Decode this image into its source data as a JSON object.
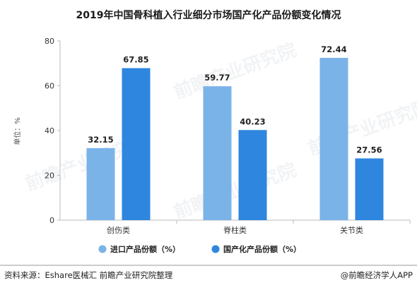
{
  "footer": {
    "source": "资料来源：Eshare医械汇 前瞻产业研究院整理",
    "brand": "@前瞻经济学人APP"
  },
  "watermark": "前瞻产业研究院",
  "chart_data": {
    "type": "bar",
    "title": "2019年中国骨科植入行业细分市场国产化产品份额变化情况",
    "ylabel": "单位：%",
    "xlabel": "",
    "ylim": [
      0,
      80
    ],
    "yticks": [
      0,
      20,
      40,
      60,
      80
    ],
    "categories": [
      "创伤类",
      "脊柱类",
      "关节类"
    ],
    "series": [
      {
        "name": "进口产品份额（%）",
        "values": [
          32.15,
          59.77,
          72.44
        ],
        "color": "#7ab3e8"
      },
      {
        "name": "国产化产品份额（%）",
        "values": [
          67.85,
          40.23,
          27.56
        ],
        "color": "#2e86de"
      }
    ],
    "legend_position": "bottom",
    "grid": false
  }
}
